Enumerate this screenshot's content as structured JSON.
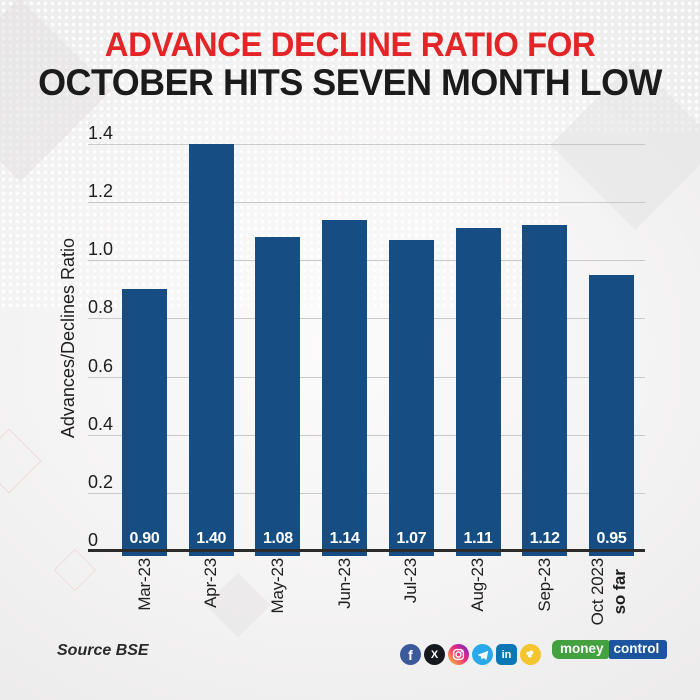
{
  "title": {
    "line1": "ADVANCE DECLINE RATIO FOR",
    "line2": "OCTOBER HITS SEVEN MONTH LOW"
  },
  "chart_data": {
    "type": "bar",
    "title": "ADVANCE DECLINE RATIO FOR OCTOBER HITS SEVEN MONTH LOW",
    "categories": [
      "Mar-23",
      "Apr-23",
      "May-23",
      "Jun-23",
      "Jul-23",
      "Aug-23",
      "Sep-23",
      "Oct 2023"
    ],
    "last_category_note": "so far",
    "values": [
      0.9,
      1.4,
      1.08,
      1.14,
      1.07,
      1.11,
      1.12,
      0.95
    ],
    "value_labels": [
      "0.90",
      "1.40",
      "1.08",
      "1.14",
      "1.07",
      "1.11",
      "1.12",
      "0.95"
    ],
    "xlabel": "",
    "ylabel": "Advances/Declines Ratio",
    "ylim": [
      0,
      1.4
    ],
    "yticks": [
      "1.4",
      "1.2",
      "1.0",
      "0.8",
      "0.6",
      "0.4",
      "0.2",
      "0"
    ],
    "grid": true,
    "legend": false,
    "bar_color": "#164e83"
  },
  "footer": {
    "source": "Source BSE",
    "social_icons": [
      "facebook",
      "x-twitter",
      "instagram",
      "telegram",
      "linkedin",
      "koo"
    ],
    "brand": {
      "part1": "money",
      "part2": "control"
    }
  },
  "colors": {
    "title_red": "#e42528",
    "title_dark": "#1b1b1b",
    "bar_blue": "#164e83",
    "grid_line": "#c9c9c9",
    "axis_line": "#2b2b2b",
    "facebook": "#3c5a99",
    "x_twitter": "#15181c",
    "telegram": "#29a9ea",
    "linkedin": "#0a78b5",
    "koo": "#f3c52f",
    "mc_green": "#43a13f",
    "mc_blue": "#1d54a0"
  }
}
